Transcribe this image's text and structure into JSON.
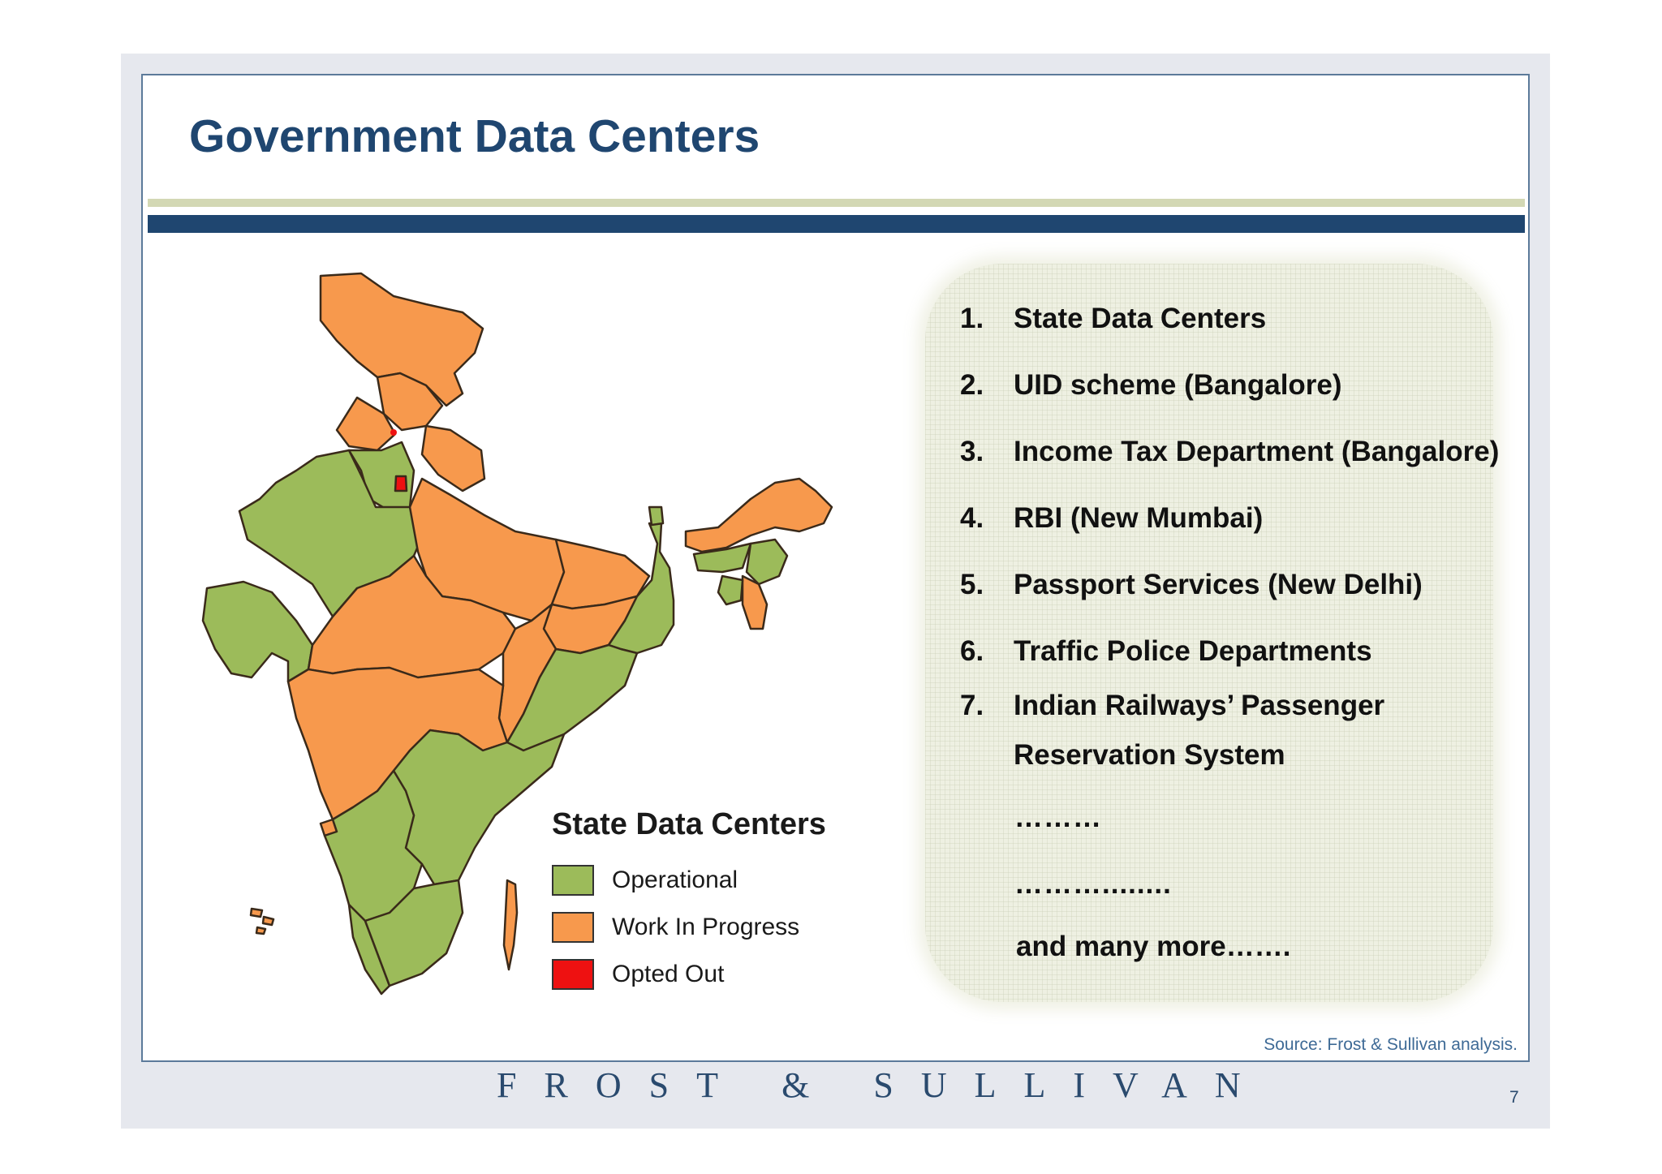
{
  "slide": {
    "title": "Government Data Centers",
    "source": "Source: Frost & Sullivan analysis.",
    "footer_logo": "FROST & SULLIVAN",
    "page_number": "7"
  },
  "legend": {
    "title": "State Data Centers",
    "items": [
      {
        "label": "Operational",
        "color": "#9cbb5a"
      },
      {
        "label": "Work In Progress",
        "color": "#f7994d"
      },
      {
        "label": "Opted Out",
        "color": "#ee1111"
      }
    ]
  },
  "list": {
    "items": [
      {
        "num": "1.",
        "text": "State Data Centers"
      },
      {
        "num": "2.",
        "text": "UID scheme (Bangalore)"
      },
      {
        "num": "3.",
        "text": "Income Tax Department (Bangalore)"
      },
      {
        "num": "4.",
        "text": "RBI (New Mumbai)"
      },
      {
        "num": "5.",
        "text": "Passport Services (New Delhi)"
      },
      {
        "num": "6.",
        "text": "Traffic Police Departments"
      },
      {
        "num": "7.",
        "text": "Indian Railways’ Passenger"
      }
    ],
    "item7_cont": "Reservation System",
    "ellipsis_1": "………",
    "ellipsis_2": "………........",
    "more": "and many more……."
  },
  "colors": {
    "title": "#1f4670",
    "operational": "#9cbb5a",
    "work_in_progress": "#f7994d",
    "opted_out": "#ee1111"
  }
}
